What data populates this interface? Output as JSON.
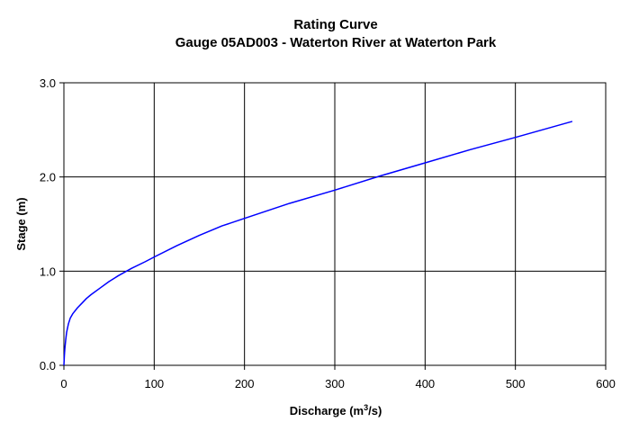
{
  "chart_data": {
    "type": "line",
    "title": "Rating Curve",
    "subtitle": "Gauge 05AD003 - Waterton River at Waterton Park",
    "xlabel_base": "Discharge (m",
    "xlabel_sup": "3",
    "xlabel_tail": "/s)",
    "ylabel": "Stage (m)",
    "xlim": [
      0,
      600
    ],
    "ylim": [
      0,
      3
    ],
    "x_ticks": [
      0,
      100,
      200,
      300,
      400,
      500,
      600
    ],
    "x_tick_labels": [
      "0",
      "100",
      "200",
      "300",
      "400",
      "500",
      "600"
    ],
    "y_ticks": [
      0,
      1,
      2,
      3
    ],
    "y_tick_labels": [
      "0.0",
      "1.0",
      "2.0",
      "3.0"
    ],
    "grid": true,
    "line_color": "#0000ff",
    "grid_color": "#000000",
    "series": [
      {
        "x": [
          0,
          0.5,
          1,
          2,
          3,
          5,
          7,
          10,
          15,
          20,
          25,
          30,
          40,
          50,
          60,
          75,
          90,
          100,
          125,
          150,
          175,
          200,
          250,
          300,
          350,
          400,
          450,
          500,
          563
        ],
        "y": [
          0.0,
          0.1,
          0.17,
          0.27,
          0.35,
          0.44,
          0.5,
          0.55,
          0.61,
          0.66,
          0.71,
          0.75,
          0.82,
          0.89,
          0.95,
          1.03,
          1.1,
          1.15,
          1.27,
          1.38,
          1.48,
          1.56,
          1.72,
          1.86,
          2.01,
          2.15,
          2.29,
          2.42,
          2.59
        ]
      }
    ]
  }
}
